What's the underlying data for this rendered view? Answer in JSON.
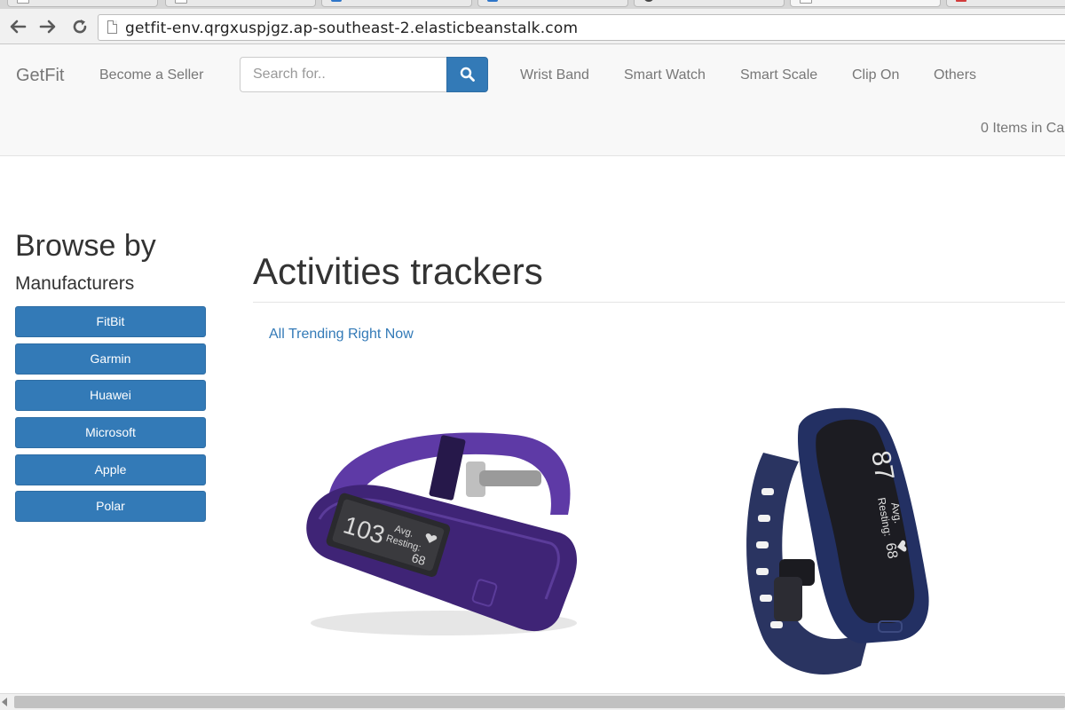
{
  "browser": {
    "address": "getfit-env.qrgxuspjgz.ap-southeast-2.elasticbeanstalk.com",
    "tabs": [
      {
        "favicon": "doc-icon"
      },
      {
        "favicon": "doc-icon"
      },
      {
        "favicon": "trello-icon"
      },
      {
        "favicon": "trello-icon"
      },
      {
        "favicon": "github-icon"
      },
      {
        "favicon": "doc-icon",
        "active": true
      },
      {
        "favicon": "portfolio-icon"
      }
    ],
    "icons": {
      "back": "back-arrow-icon",
      "forward": "forward-arrow-icon",
      "reload": "reload-icon",
      "page": "page-icon"
    }
  },
  "navbar": {
    "brand": "GetFit",
    "become_seller": "Become a Seller",
    "search": {
      "placeholder": "Search for..",
      "icon": "search-icon"
    },
    "categories": [
      "Wrist Band",
      "Smart Watch",
      "Smart Scale",
      "Clip On",
      "Others"
    ],
    "cart": "0 Items in Ca"
  },
  "sidebar": {
    "title": "Browse by",
    "subtitle": "Manufacturers",
    "manufacturers": [
      "FitBit",
      "Garmin",
      "Huawei",
      "Microsoft",
      "Apple",
      "Polar"
    ]
  },
  "main": {
    "title": "Activities trackers",
    "trending_link": "All Trending Right Now",
    "products": [
      {
        "display_number": "103",
        "display_label_1": "Avg.",
        "display_label_2": "Resting:",
        "display_value": "68",
        "color": "#4a2a86"
      },
      {
        "display_number": "87",
        "display_label_1": "Avg.",
        "display_label_2": "Resting:",
        "display_value": "68",
        "color": "#23305e"
      }
    ]
  },
  "colors": {
    "primary": "#337ab7",
    "navbar_bg": "#f8f8f8",
    "link": "#337ab7"
  }
}
